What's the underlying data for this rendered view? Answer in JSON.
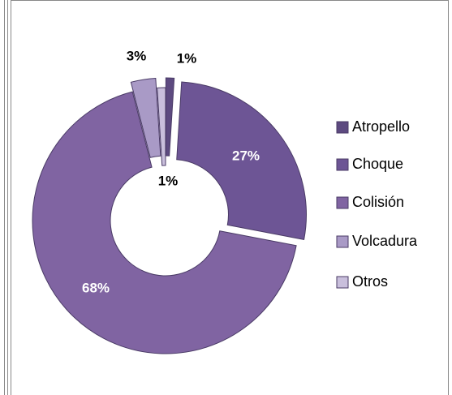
{
  "chart_data": {
    "type": "doughnut",
    "categories": [
      "Atropello",
      "Choque",
      "Colisión",
      "Volcadura",
      "Otros"
    ],
    "values": [
      1,
      27,
      68,
      3,
      1
    ],
    "value_labels": [
      "1%",
      "27%",
      "68%",
      "3%",
      "1%"
    ],
    "colors": [
      "#5d4a80",
      "#6d5595",
      "#8064a2",
      "#a99ac6",
      "#c9bfdc"
    ],
    "legend": "right"
  }
}
